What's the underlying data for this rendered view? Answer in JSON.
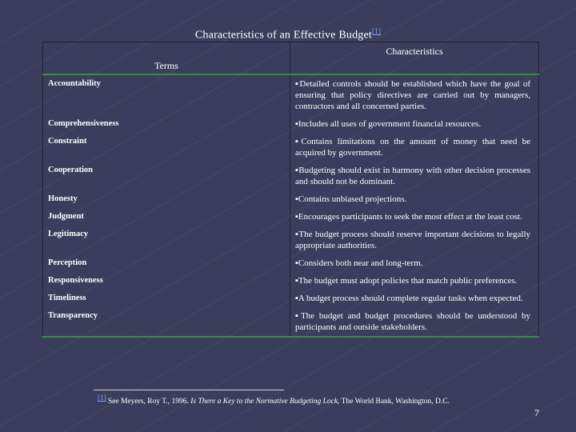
{
  "title": "Characteristics of an Effective Budget",
  "title_note": "[1]",
  "table": {
    "headers": [
      "Terms",
      "Characteristics"
    ],
    "rows": [
      [
        "Accountability",
        "▪Detailed controls should be established which have the goal of ensuring that policy directives are carried out by managers, contractors and all concerned parties."
      ],
      [
        "Comprehensiveness",
        "▪Includes all uses of government financial resources."
      ],
      [
        "Constraint",
        "▪Contains limitations on the amount of money that need be acquired by government."
      ],
      [
        "Cooperation",
        "▪Budgeting should exist in harmony with other decision processes and should not be dominant."
      ],
      [
        "Honesty",
        "▪Contains unbiased projections."
      ],
      [
        "Judgment",
        "▪Encourages participants to seek the most effect at the least cost."
      ],
      [
        "Legitimacy",
        "▪The budget process should reserve important decisions to legally appropriate authorities."
      ],
      [
        "Perception",
        "▪Considers both near and long-term."
      ],
      [
        "Responsiveness",
        "▪The budget must adopt policies that match public preferences."
      ],
      [
        "Timeliness",
        "▪A budget process should complete regular tasks when expected."
      ],
      [
        "Transparency",
        "▪The budget and budget procedures should be understood by participants and outside stakeholders."
      ]
    ]
  },
  "footnote": {
    "marker": "[1]",
    "text": "See Meyers, Roy T., 1996.",
    "work": "Is There a Key to the Normative Budgeting Lock,",
    "publisher": "The World Bank, Washington, D.C."
  },
  "page_number": "7"
}
